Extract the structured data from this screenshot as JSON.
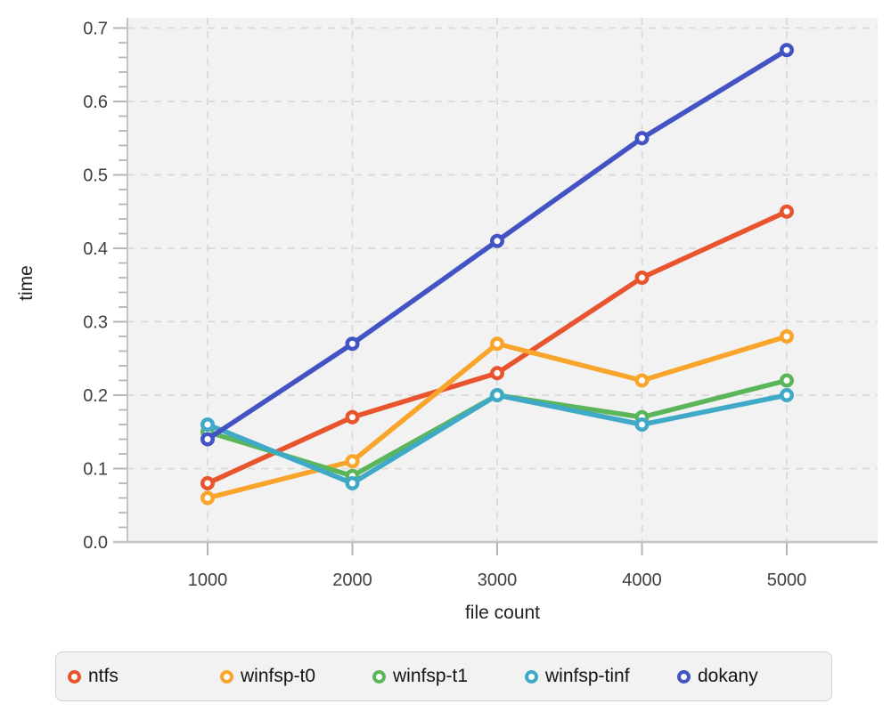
{
  "figure": {
    "background": "#ffffff",
    "panel_background": "#f2f2f2",
    "grid_color": "#d9d9d9",
    "axis_line_color": "#c3c3c3",
    "tick_mark_color": "#b6b6b6",
    "tick_label_color": "#3f3f3f",
    "axis_label_color": "#222222"
  },
  "chart_data": {
    "type": "line",
    "title": "",
    "xlabel": "file count",
    "ylabel": "time",
    "x": [
      1000,
      2000,
      3000,
      4000,
      5000
    ],
    "x_tick_labels": [
      "1000",
      "2000",
      "3000",
      "4000",
      "5000"
    ],
    "y_tick_labels": [
      "0.0",
      "0.1",
      "0.2",
      "0.3",
      "0.4",
      "0.5",
      "0.6",
      "0.7"
    ],
    "ylim": [
      0,
      0.7
    ],
    "y_major_step": 0.1,
    "y_minor_step": 0.02,
    "grid": "dashed",
    "legend_position": "bottom",
    "series": [
      {
        "name": "ntfs",
        "color": "#e8542d",
        "values": [
          0.08,
          0.17,
          0.23,
          0.36,
          0.45
        ]
      },
      {
        "name": "winfsp-t0",
        "color": "#f9a42a",
        "values": [
          0.06,
          0.11,
          0.27,
          0.22,
          0.28
        ]
      },
      {
        "name": "winfsp-t1",
        "color": "#5bb55b",
        "values": [
          0.15,
          0.09,
          0.2,
          0.17,
          0.22
        ]
      },
      {
        "name": "winfsp-tinf",
        "color": "#40a9c8",
        "values": [
          0.16,
          0.08,
          0.2,
          0.16,
          0.2
        ]
      },
      {
        "name": "dokany",
        "color": "#4353c4",
        "values": [
          0.14,
          0.27,
          0.41,
          0.55,
          0.67
        ]
      }
    ]
  }
}
